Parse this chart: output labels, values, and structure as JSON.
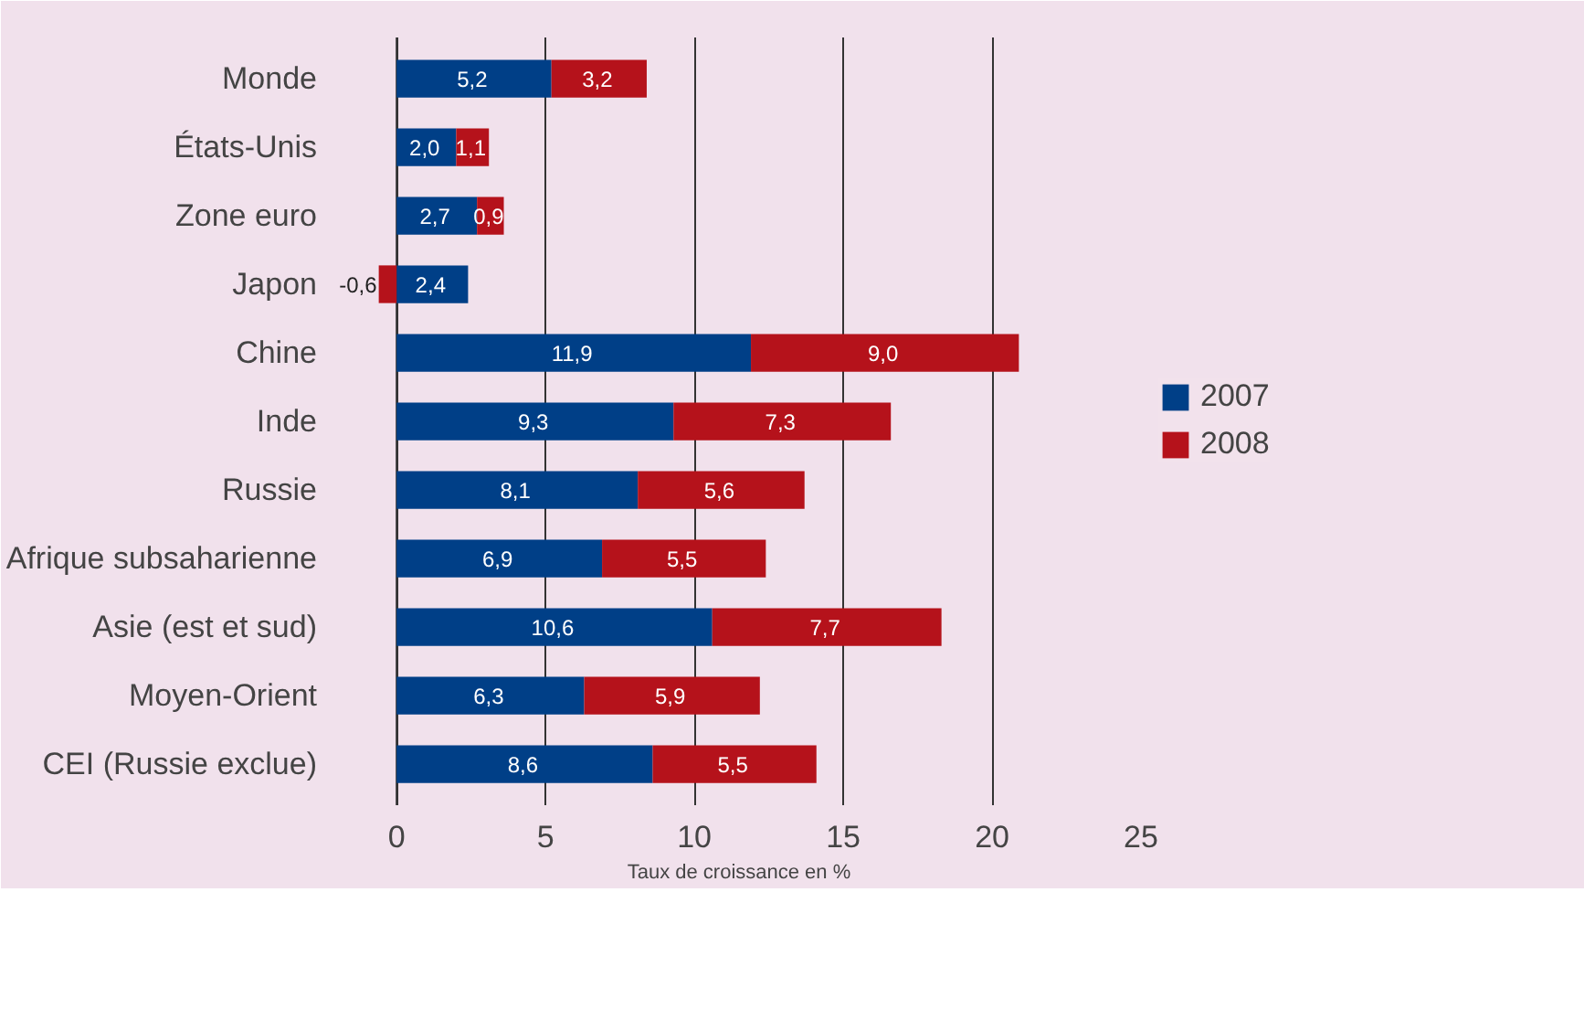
{
  "chart_data": {
    "type": "bar",
    "orientation": "horizontal",
    "stacked": true,
    "xlabel": "Taux de croissance en %",
    "categories": [
      "Monde",
      "États-Unis",
      "Zone euro",
      "Japon",
      "Chine",
      "Inde",
      "Russie",
      "Afrique subsaharienne",
      "Asie (est et sud)",
      "Moyen-Orient",
      "CEI (Russie exclue)"
    ],
    "series": [
      {
        "name": "2007",
        "color": "#003f87",
        "values": [
          5.2,
          2.0,
          2.7,
          2.4,
          11.9,
          9.3,
          8.1,
          6.9,
          10.6,
          6.3,
          8.6
        ],
        "value_labels": [
          "5,2",
          "2,0",
          "2,7",
          "2,4",
          "11,9",
          "9,3",
          "8,1",
          "6,9",
          "10,6",
          "6,3",
          "8,6"
        ]
      },
      {
        "name": "2008",
        "color": "#b5121b",
        "values": [
          3.2,
          1.1,
          0.9,
          -0.6,
          9.0,
          7.3,
          5.6,
          5.5,
          7.7,
          5.9,
          5.5
        ],
        "value_labels": [
          "3,2",
          "1,1",
          "0,9",
          "-0,6",
          "9,0",
          "7,3",
          "5,6",
          "5,5",
          "7,7",
          "5,9",
          "5,5"
        ]
      }
    ],
    "xlim": [
      -2,
      25
    ],
    "xticks": [
      0,
      5,
      10,
      15,
      20,
      25
    ],
    "grid": "x",
    "legend": "right"
  }
}
